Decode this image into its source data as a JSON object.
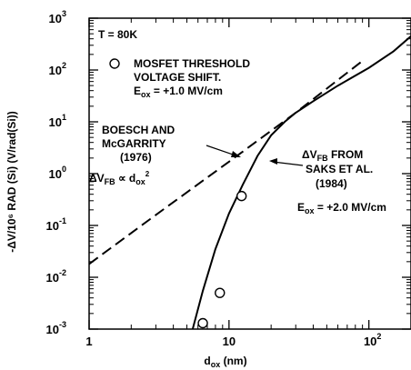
{
  "chart_data": {
    "type": "line",
    "xscale": "log",
    "yscale": "log",
    "xlim": [
      1,
      200
    ],
    "ylim": [
      0.001,
      1000
    ],
    "xlabel": {
      "main": "d",
      "sub": "ox",
      "unit": " (nm)"
    },
    "ylabel": "-ΔV/10⁶ RAD (Si) (V/rad(Si))",
    "xticks": [
      {
        "value": 1,
        "base": "1",
        "exp": ""
      },
      {
        "value": 10,
        "base": "10",
        "exp": ""
      },
      {
        "value": 100,
        "base": "10",
        "exp": "2"
      }
    ],
    "yticks": [
      {
        "value": 0.001,
        "base": "10",
        "exp": "-3"
      },
      {
        "value": 0.01,
        "base": "10",
        "exp": "-2"
      },
      {
        "value": 0.1,
        "base": "10",
        "exp": "-1"
      },
      {
        "value": 1,
        "base": "10",
        "exp": "0"
      },
      {
        "value": 10,
        "base": "10",
        "exp": "1"
      },
      {
        "value": 100,
        "base": "10",
        "exp": "2"
      },
      {
        "value": 1000,
        "base": "10",
        "exp": "3"
      }
    ],
    "series": [
      {
        "style": "solid",
        "x": [
          5.5,
          6.5,
          8,
          10,
          12.5,
          16,
          20,
          25,
          30,
          40,
          60,
          100,
          150,
          200
        ],
        "y": [
          0.001,
          0.0055,
          0.035,
          0.17,
          0.6,
          2.2,
          5.5,
          10,
          15,
          25,
          50,
          110,
          230,
          450
        ]
      },
      {
        "style": "dashed",
        "x": [
          1,
          3,
          10,
          30,
          90
        ],
        "y": [
          0.018,
          0.16,
          1.7,
          15,
          150
        ]
      },
      {
        "style": "markers",
        "marker": "open-circle",
        "x": [
          6.5,
          8.6,
          12.3
        ],
        "y": [
          0.0013,
          0.005,
          0.37
        ]
      }
    ],
    "annotations": {
      "temperature": "T = 80K",
      "mosfet_line1": "MOSFET THRESHOLD",
      "mosfet_line2": "VOLTAGE SHIFT.",
      "mosfet_field": {
        "main": "E",
        "sub": "ox",
        "rest": " = +1.0 MV/cm"
      },
      "boesch_line1": "BOESCH AND",
      "boesch_line2": "McGARRITY",
      "boesch_line3": "(1976)",
      "boesch_formula": {
        "delta": "ΔV",
        "sub": "FB",
        "rel": " ∝ d",
        "sub2": "ox",
        "exp": "2"
      },
      "saks_line1": {
        "delta": "ΔV",
        "sub": "FB",
        "rest": " FROM"
      },
      "saks_line2": "SAKS ET AL.",
      "saks_line3": "(1984)",
      "saks_field": {
        "main": "E",
        "sub": "ox",
        "rest": " = +2.0 MV/cm"
      }
    }
  }
}
